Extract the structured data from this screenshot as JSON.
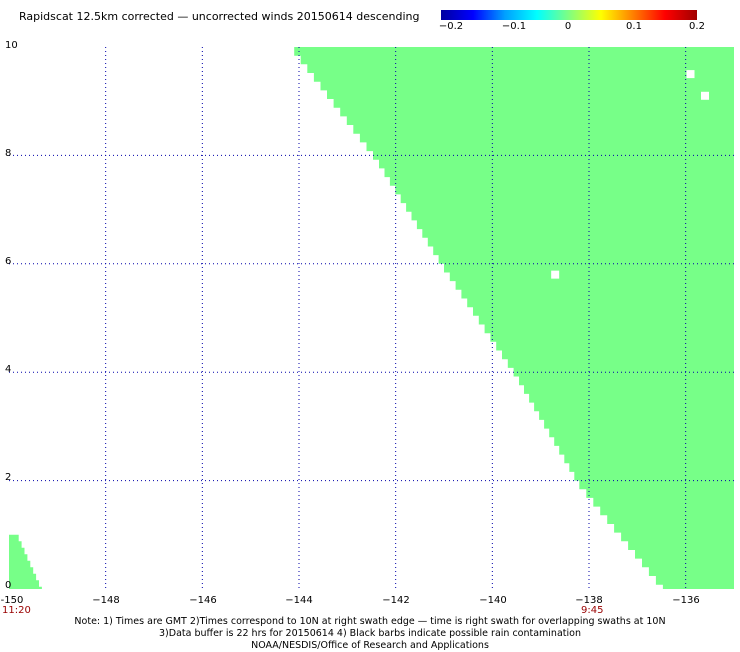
{
  "title": "Rapidscat 12.5km corrected — uncorrected winds 20150614 descending",
  "colorbar": {
    "ticks": [
      "−0.2",
      "−0.1",
      "0",
      "0.1",
      "0.2"
    ],
    "colors": [
      "#0000a0",
      "#0000ff",
      "#00a0ff",
      "#00ffff",
      "#80ff80",
      "#ffff00",
      "#ff8000",
      "#ff0000",
      "#a00000"
    ]
  },
  "x_axis": {
    "ticks": [
      "-150",
      "−148",
      "−146",
      "−144",
      "−142",
      "−140",
      "−138",
      "−136"
    ]
  },
  "y_axis": {
    "ticks": [
      "10",
      "8",
      "6",
      "4",
      "2",
      "0"
    ]
  },
  "times": {
    "left": "11:20",
    "right": "9:45"
  },
  "notes": [
    "Note: 1) Times are GMT 2)Times correspond to 10N at right swath edge — time is right swath for overlapping swaths at 10N",
    "3)Data buffer is 22 hrs for 20150614 4) Black barbs indicate possible rain contamination",
    "NOAA/NESDIS/Office of Research and Applications"
  ],
  "colors": {
    "data_fill": "#77ff88",
    "grid": "#0000aa"
  },
  "map_data": {
    "lon_range": [
      -150,
      -135
    ],
    "lat_range": [
      0,
      10
    ],
    "main_swath": {
      "value": 0.0,
      "right_lon": -135,
      "left_edge": [
        {
          "lat": 10.0,
          "lon": -144.1
        },
        {
          "lat": 8.0,
          "lon": -142.4
        },
        {
          "lat": 6.0,
          "lon": -141.0
        },
        {
          "lat": 4.0,
          "lon": -139.5
        },
        {
          "lat": 2.0,
          "lon": -138.2
        },
        {
          "lat": 0.0,
          "lon": -136.4
        }
      ]
    },
    "corner_swath": {
      "value": 0.0,
      "left_edge": [
        {
          "lat": 1.0,
          "lon": -150.0
        },
        {
          "lat": 0.0,
          "lon": -150.0
        }
      ],
      "right_edge": [
        {
          "lat": 1.0,
          "lon": -149.8
        },
        {
          "lat": 0.0,
          "lon": -149.3
        }
      ]
    },
    "gaps": [
      {
        "lat": 9.5,
        "lon": -135.9
      },
      {
        "lat": 9.1,
        "lon": -135.6
      },
      {
        "lat": 5.8,
        "lon": -138.7
      }
    ]
  }
}
